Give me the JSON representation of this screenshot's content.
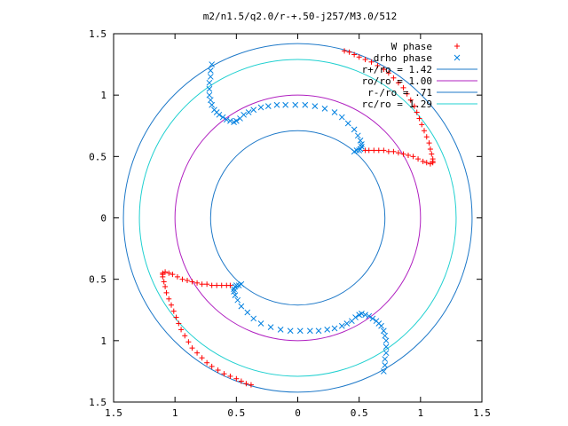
{
  "chart_data": {
    "type": "scatter",
    "title": "m2/n1.5/q2.0/r-+.50-j257/M3.0/512",
    "xlim": [
      -1.5,
      1.5
    ],
    "ylim": [
      -1.5,
      1.5
    ],
    "x_tick_values": [
      -1.5,
      -1,
      -0.5,
      0,
      0.5,
      1,
      1.5
    ],
    "x_tick_labels": [
      "1.5",
      "1",
      "0.5",
      "0",
      "0.5",
      "1",
      "1.5"
    ],
    "y_tick_values": [
      1.5,
      1,
      0.5,
      0,
      -0.5,
      -1,
      -1.5
    ],
    "y_tick_labels": [
      "1.5",
      "1",
      "0.5",
      "0",
      "0.5",
      "1",
      "1.5"
    ],
    "grid": false,
    "legend_position": "top-right",
    "legend": [
      {
        "label": "W phase",
        "kind": "marker",
        "marker": "plus",
        "color": "#ff0000"
      },
      {
        "label": "drho phase",
        "kind": "marker",
        "marker": "cross",
        "color": "#0080e0"
      },
      {
        "label": "r+/ro = 1.42",
        "kind": "line",
        "color": "#1d78c8"
      },
      {
        "label": "ro/ro = 1.00",
        "kind": "line",
        "color": "#b020c0"
      },
      {
        "label": "r-/ro = .71",
        "kind": "line",
        "color": "#1d78c8"
      },
      {
        "label": "rc/ro = 1.29",
        "kind": "line",
        "color": "#20d0d0"
      }
    ],
    "circles": [
      {
        "name": "r+/ro",
        "radius": 1.42,
        "color": "#1d78c8"
      },
      {
        "name": "ro/ro",
        "radius": 1.0,
        "color": "#b020c0"
      },
      {
        "name": "r-/ro",
        "radius": 0.71,
        "color": "#1d78c8"
      },
      {
        "name": "rc/ro",
        "radius": 1.29,
        "color": "#20d0d0"
      }
    ],
    "series": [
      {
        "name": "W phase",
        "marker": "plus",
        "color": "#ff0000",
        "x": [
          0.38,
          0.42,
          0.46,
          0.5,
          0.55,
          0.6,
          0.65,
          0.7,
          0.74,
          0.78,
          0.82,
          0.86,
          0.89,
          0.92,
          0.95,
          0.97,
          0.99,
          1.01,
          1.03,
          1.05,
          1.07,
          1.08,
          1.09,
          1.1,
          1.1,
          1.1,
          1.08,
          1.05,
          1.02,
          0.98,
          0.94,
          0.9,
          0.86,
          0.82,
          0.78,
          0.74,
          0.7,
          0.66,
          0.62,
          0.58,
          0.55,
          -0.38,
          -0.42,
          -0.46,
          -0.5,
          -0.55,
          -0.6,
          -0.65,
          -0.7,
          -0.74,
          -0.78,
          -0.82,
          -0.86,
          -0.89,
          -0.92,
          -0.95,
          -0.97,
          -0.99,
          -1.01,
          -1.03,
          -1.05,
          -1.07,
          -1.08,
          -1.09,
          -1.1,
          -1.1,
          -1.1,
          -1.08,
          -1.05,
          -1.02,
          -0.98,
          -0.94,
          -0.9,
          -0.86,
          -0.82,
          -0.78,
          -0.74,
          -0.7,
          -0.66,
          -0.62,
          -0.58,
          -0.55
        ],
        "y": [
          1.36,
          1.35,
          1.33,
          1.31,
          1.29,
          1.27,
          1.24,
          1.21,
          1.18,
          1.14,
          1.1,
          1.06,
          1.01,
          0.96,
          0.91,
          0.86,
          0.81,
          0.76,
          0.71,
          0.66,
          0.61,
          0.56,
          0.52,
          0.48,
          0.46,
          0.45,
          0.44,
          0.45,
          0.46,
          0.48,
          0.5,
          0.51,
          0.52,
          0.53,
          0.54,
          0.54,
          0.55,
          0.55,
          0.55,
          0.55,
          0.55,
          -1.36,
          -1.35,
          -1.33,
          -1.31,
          -1.29,
          -1.27,
          -1.24,
          -1.21,
          -1.18,
          -1.14,
          -1.1,
          -1.06,
          -1.01,
          -0.96,
          -0.91,
          -0.86,
          -0.81,
          -0.76,
          -0.71,
          -0.66,
          -0.61,
          -0.56,
          -0.52,
          -0.48,
          -0.46,
          -0.45,
          -0.44,
          -0.45,
          -0.46,
          -0.48,
          -0.5,
          -0.51,
          -0.52,
          -0.53,
          -0.54,
          -0.54,
          -0.55,
          -0.55,
          -0.55,
          -0.55,
          -0.55
        ]
      },
      {
        "name": "drho phase",
        "marker": "cross",
        "color": "#0080e0",
        "x": [
          -0.7,
          -0.71,
          -0.71,
          -0.72,
          -0.72,
          -0.72,
          -0.71,
          -0.7,
          -0.68,
          -0.66,
          -0.64,
          -0.61,
          -0.58,
          -0.55,
          -0.52,
          -0.5,
          -0.47,
          -0.44,
          -0.4,
          -0.36,
          -0.3,
          -0.24,
          -0.17,
          -0.1,
          -0.02,
          0.06,
          0.14,
          0.22,
          0.3,
          0.36,
          0.41,
          0.46,
          0.49,
          0.51,
          0.52,
          0.52,
          0.51,
          0.5,
          0.48,
          0.46,
          0.7,
          0.71,
          0.71,
          0.72,
          0.72,
          0.72,
          0.71,
          0.7,
          0.68,
          0.66,
          0.64,
          0.61,
          0.58,
          0.55,
          0.52,
          0.5,
          0.47,
          0.44,
          0.4,
          0.36,
          0.3,
          0.24,
          0.17,
          0.1,
          0.02,
          -0.06,
          -0.14,
          -0.22,
          -0.3,
          -0.36,
          -0.41,
          -0.46,
          -0.49,
          -0.51,
          -0.52,
          -0.52,
          -0.51,
          -0.5,
          -0.48,
          -0.46
        ],
        "y": [
          1.25,
          1.2,
          1.15,
          1.1,
          1.05,
          1.0,
          0.96,
          0.92,
          0.88,
          0.86,
          0.84,
          0.82,
          0.8,
          0.79,
          0.78,
          0.79,
          0.81,
          0.84,
          0.86,
          0.88,
          0.9,
          0.91,
          0.92,
          0.92,
          0.92,
          0.92,
          0.91,
          0.89,
          0.86,
          0.82,
          0.77,
          0.72,
          0.67,
          0.63,
          0.6,
          0.58,
          0.56,
          0.55,
          0.55,
          0.54,
          -1.25,
          -1.2,
          -1.15,
          -1.1,
          -1.05,
          -1.0,
          -0.96,
          -0.92,
          -0.88,
          -0.86,
          -0.84,
          -0.82,
          -0.8,
          -0.79,
          -0.78,
          -0.79,
          -0.81,
          -0.84,
          -0.86,
          -0.88,
          -0.9,
          -0.91,
          -0.92,
          -0.92,
          -0.92,
          -0.92,
          -0.91,
          -0.89,
          -0.86,
          -0.82,
          -0.77,
          -0.72,
          -0.67,
          -0.63,
          -0.6,
          -0.58,
          -0.56,
          -0.55,
          -0.55,
          -0.54
        ]
      }
    ]
  }
}
